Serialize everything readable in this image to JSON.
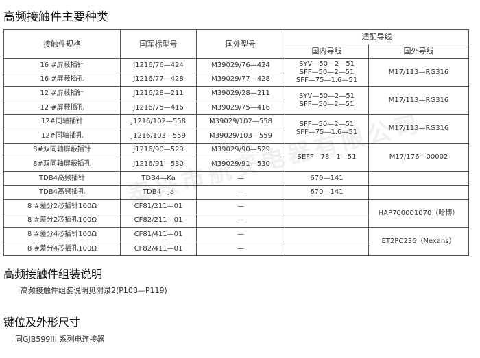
{
  "title": "高频接触件主要种类",
  "table": {
    "headers": {
      "spec": "接触件规格",
      "military": "国军标型号",
      "foreign_model": "国外型号",
      "wire": "适配导线",
      "domestic_wire": "国内导线",
      "foreign_wire": "国外导线"
    },
    "rows": [
      {
        "spec": "16 #屏蔽插针",
        "military": "J1216/76—424",
        "foreign": "M39029/76—424"
      },
      {
        "spec": "16 #屏蔽插孔",
        "military": "J1216/77—428",
        "foreign": "M39029/77—428"
      },
      {
        "spec": "12 #屏蔽插针",
        "military": "J1216/28—211",
        "foreign": "M39029/28—211"
      },
      {
        "spec": "12 #屏蔽插孔",
        "military": "J1216/75—416",
        "foreign": "M39029/75—416"
      },
      {
        "spec": "12#同轴插针",
        "military": "J1216/102—558",
        "foreign": "M39029/102—558"
      },
      {
        "spec": "12#同轴插孔",
        "military": "J1216/103—559",
        "foreign": "M39029/103—559"
      },
      {
        "spec": "8#双同轴屏蔽插针",
        "military": "J1216/90—529",
        "foreign": "M39029/90—529"
      },
      {
        "spec": "8#双同轴屏蔽插孔",
        "military": "J1216/91—530",
        "foreign": "M39029/91—530"
      },
      {
        "spec": "TDB4高频插针",
        "military": "TDB4—Ka",
        "foreign": "—"
      },
      {
        "spec": "TDB4高频插孔",
        "military": "TDB4—Ja",
        "foreign": "—"
      },
      {
        "spec": "8 #差分2芯插针100Ω",
        "military": "CF81/211—01",
        "foreign": "—"
      },
      {
        "spec": "8 #差分2芯插孔100Ω",
        "military": "CF82/211—01",
        "foreign": "—"
      },
      {
        "spec": "8 #差分4芯插针100Ω",
        "military": "CF81/411—01",
        "foreign": "—"
      },
      {
        "spec": "8 #差分4芯插孔100Ω",
        "military": "CF82/411—01",
        "foreign": "—"
      }
    ],
    "wires": {
      "g1_domestic": [
        "SYV—50—2—51",
        "SFF—50—2—51",
        "SFF—75—1.6—51"
      ],
      "g1_foreign": "M17/113—RG316",
      "g2_domestic": [
        "SYV—50—2—51",
        "SFF—50—2—51"
      ],
      "g2_foreign": "M17/113—RG316",
      "g3_domestic": [
        "SFF—50—2—51",
        "SFF—75—1.6—51"
      ],
      "g3_foreign": "M17/113—RG316",
      "g4_domestic": "SEFF—78—1—51",
      "g4_foreign": "M17/176—00002",
      "tdb_pin_domestic": "670—141",
      "tdb_hole_domestic": "670—141",
      "g5_foreign": "HAP700001070（哈博）",
      "g6_foreign": "ET2PC236（Nexans）"
    }
  },
  "section2": {
    "title": "高频接触件组装说明",
    "text": "高频接触件组装说明见附录2(P108—P119)"
  },
  "section3": {
    "title": "键位及外形尺寸",
    "text": "同GJB599III 系列电连接器"
  },
  "watermark": "泰兴市航安电器有限公司"
}
